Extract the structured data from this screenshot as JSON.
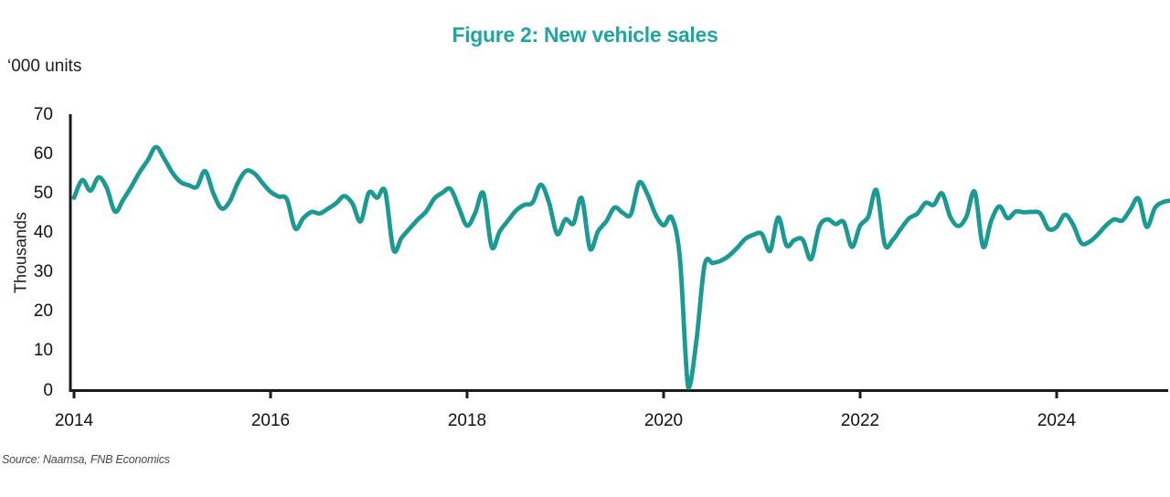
{
  "title": "Figure 2: New vehicle sales",
  "units_label": "‘000 units",
  "source_note": "Source: Naamsa, FNB Economics",
  "colors": {
    "title_teal": "#1FA5A3",
    "line_teal": "#1A9A93",
    "axis_black": "#1a1a1a",
    "source_gray": "#4a4a4a"
  },
  "chart_data": {
    "type": "line",
    "title": "Figure 2: New vehicle sales",
    "ylabel": "Thousands",
    "units_label": "'000 units",
    "series_name": "New vehicle sales, '000 units, monthly",
    "x_start": "2014-01",
    "x_end": "2025-03",
    "x_frequency": "monthly",
    "ylim": [
      0,
      70
    ],
    "yticks": [
      0,
      10,
      20,
      30,
      40,
      50,
      60,
      70
    ],
    "xticks": [
      2014,
      2016,
      2018,
      2020,
      2022,
      2024
    ],
    "grid": false,
    "legend": false,
    "line_color": "#1A9A93",
    "values": [
      49.0,
      53.5,
      50.8,
      54.2,
      51.5,
      45.5,
      48.5,
      51.8,
      55.5,
      58.5,
      61.9,
      59.0,
      55.4,
      53.0,
      52.2,
      51.8,
      55.8,
      50.2,
      46.3,
      48.0,
      52.8,
      55.8,
      55.2,
      52.8,
      50.5,
      49.3,
      48.6,
      41.2,
      43.8,
      45.4,
      45.0,
      46.2,
      47.6,
      49.4,
      47.5,
      43.0,
      50.3,
      49.0,
      50.6,
      35.8,
      38.8,
      41.2,
      43.5,
      45.5,
      48.8,
      50.3,
      51.2,
      46.5,
      41.9,
      45.2,
      50.1,
      36.5,
      40.5,
      43.2,
      45.8,
      47.2,
      47.8,
      52.3,
      47.8,
      39.8,
      43.5,
      42.5,
      48.9,
      36.1,
      40.5,
      43.0,
      46.5,
      45.2,
      44.8,
      52.8,
      50.0,
      44.8,
      42.0,
      43.9,
      33.5,
      0.8,
      12.5,
      31.9,
      32.4,
      33.0,
      34.3,
      36.3,
      38.6,
      39.6,
      39.8,
      35.5,
      44.0,
      36.9,
      38.3,
      38.3,
      33.4,
      41.6,
      43.5,
      42.3,
      42.8,
      36.5,
      41.9,
      44.2,
      50.9,
      37.2,
      38.3,
      41.2,
      43.8,
      45.0,
      47.7,
      47.2,
      50.1,
      44.2,
      41.8,
      44.3,
      50.5,
      36.6,
      43.1,
      46.8,
      43.8,
      45.5,
      45.3,
      45.4,
      45.0,
      41.1,
      41.6,
      44.7,
      42.2,
      37.5,
      37.8,
      39.6,
      41.9,
      43.5,
      43.2,
      46.0,
      48.8,
      41.6,
      46.4,
      47.9,
      48.3
    ]
  }
}
